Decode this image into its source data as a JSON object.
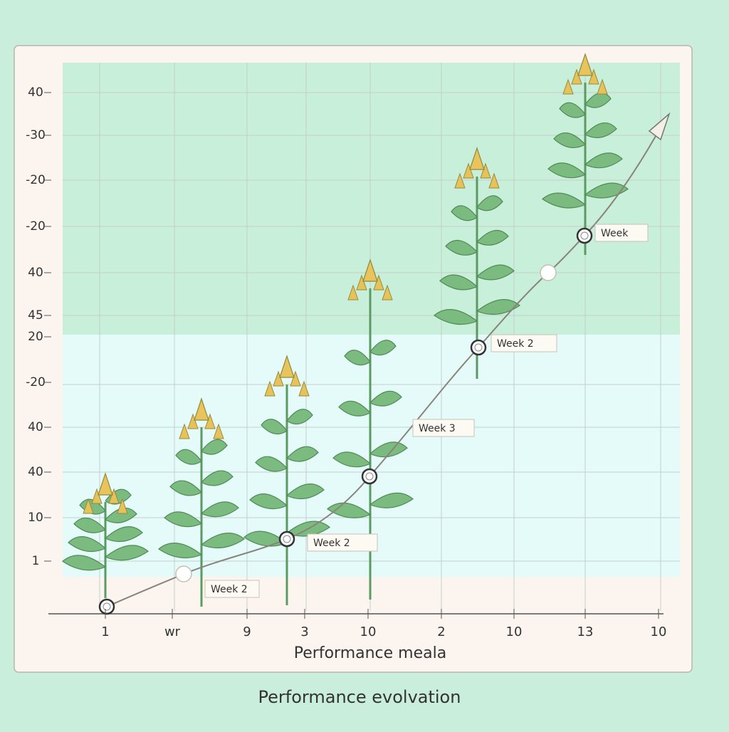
{
  "y_labels": [
    "40",
    "-30",
    "-20",
    "-20",
    "40",
    "45",
    "20",
    "-20",
    "40",
    "40",
    "10",
    "1"
  ],
  "x_labels": [
    "1",
    "wr",
    "9",
    "3",
    "10",
    "2",
    "10",
    "13",
    "10"
  ],
  "callouts": [
    "Week 2",
    "Week  2",
    "Week 3",
    "Week  2",
    "Week"
  ],
  "axis_title": "Performance meala",
  "caption": "Performance evolvation"
}
